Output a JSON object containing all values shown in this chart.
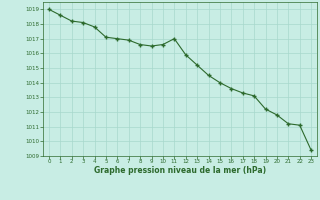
{
  "x": [
    0,
    1,
    2,
    3,
    4,
    5,
    6,
    7,
    8,
    9,
    10,
    11,
    12,
    13,
    14,
    15,
    16,
    17,
    18,
    19,
    20,
    21,
    22,
    23
  ],
  "y": [
    1019.0,
    1018.6,
    1018.2,
    1018.1,
    1017.8,
    1017.1,
    1017.0,
    1016.9,
    1016.6,
    1016.5,
    1016.6,
    1017.0,
    1015.9,
    1015.2,
    1014.5,
    1014.0,
    1013.6,
    1013.3,
    1013.1,
    1012.2,
    1011.8,
    1011.2,
    1011.1,
    1009.4
  ],
  "xlim": [
    -0.5,
    23.5
  ],
  "ylim": [
    1009,
    1019.5
  ],
  "yticks": [
    1009,
    1010,
    1011,
    1012,
    1013,
    1014,
    1015,
    1016,
    1017,
    1018,
    1019
  ],
  "xticks": [
    0,
    1,
    2,
    3,
    4,
    5,
    6,
    7,
    8,
    9,
    10,
    11,
    12,
    13,
    14,
    15,
    16,
    17,
    18,
    19,
    20,
    21,
    22,
    23
  ],
  "line_color": "#2d6a2d",
  "marker_color": "#2d6a2d",
  "bg_color": "#c8ede4",
  "grid_color": "#a8d8cc",
  "xlabel": "Graphe pression niveau de la mer (hPa)",
  "xlabel_color": "#2d6a2d",
  "tick_color": "#2d6a2d"
}
